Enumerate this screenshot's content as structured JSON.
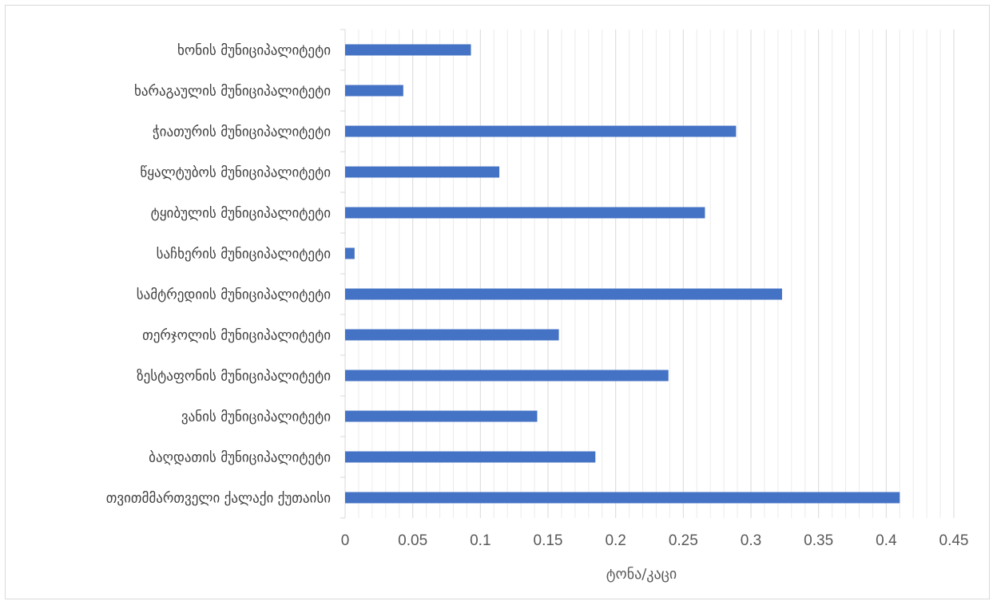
{
  "chart_data": {
    "type": "bar",
    "orientation": "horizontal",
    "categories": [
      "თვითმმართველი ქალაქი ქუთაისი",
      "ბაღდათის მუნიციპალიტეტი",
      "ვანის მუნიციპალიტეტი",
      "ზესტაფონის მუნიციპალიტეტი",
      "თერჯოლის მუნიციპალიტეტი",
      "სამტრედიის მუნიციპალიტეტი",
      "საჩხერის მუნიციპალიტეტი",
      "ტყიბულის მუნიციპალიტეტი",
      "წყალტუბოს მუნიციპალიტეტი",
      "ჭიათურის მუნიციპალიტეტი",
      "ხარაგაულის მუნიციპალიტეტი",
      "ხონის მუნიციპალიტეტი"
    ],
    "values": [
      0.41,
      0.185,
      0.142,
      0.239,
      0.158,
      0.323,
      0.007,
      0.266,
      0.114,
      0.289,
      0.043,
      0.093
    ],
    "title": "",
    "xlabel": "ტონა/კაცი",
    "ylabel": "",
    "xlim": [
      0,
      0.45
    ],
    "xticks": [
      "0",
      "0.05",
      "0.1",
      "0.15",
      "0.2",
      "0.25",
      "0.3",
      "0.35",
      "0.4",
      "0.45"
    ],
    "grid": "vertical-major-and-minor",
    "legend": "none",
    "bar_color": "#4472c4",
    "major_grid_color": "#d9d9d9",
    "minor_grid_color": "#ececec"
  }
}
